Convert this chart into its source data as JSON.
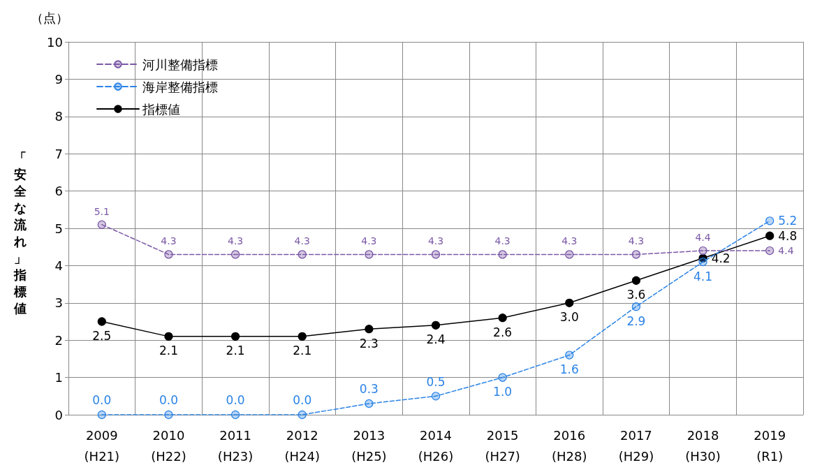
{
  "chart_data": {
    "type": "line",
    "ylabel": "「安全な流れ」指標値",
    "annotations": [
      "（点）"
    ],
    "categories": [
      "2009\n(H21)",
      "2010\n(H22)",
      "2011\n(H23)",
      "2012\n(H24)",
      "2013\n(H25)",
      "2014\n(H26)",
      "2015\n(H27)",
      "2016\n(H28)",
      "2017\n(H29)",
      "2018\n(H30)",
      "2019\n(R1)"
    ],
    "series": [
      {
        "name": "河川整備指標",
        "color": "#7b58a6",
        "line_style": "dashed",
        "values": [
          5.1,
          4.3,
          4.3,
          4.3,
          4.3,
          4.3,
          4.3,
          4.3,
          4.3,
          4.4,
          4.4
        ],
        "value_labels": [
          "5.1",
          "4.3",
          "4.3",
          "4.3",
          "4.3",
          "4.3",
          "4.3",
          "4.3",
          "4.3",
          "4.4",
          "4.4"
        ]
      },
      {
        "name": "海岸整備指標",
        "color": "#2a83e6",
        "line_style": "dashed",
        "values": [
          0,
          0,
          0,
          0,
          0.3,
          0.5,
          1.0,
          1.6,
          2.9,
          4.1,
          5.2
        ],
        "value_labels": [
          "0.0",
          "0.0",
          "0.0",
          "0.0",
          "0.3",
          "0.5",
          "1.0",
          "1.6",
          "2.9",
          "4.1",
          "5.2"
        ]
      },
      {
        "name": "指標値",
        "color": "#000000",
        "line_style": "solid",
        "values": [
          2.5,
          2.1,
          2.1,
          2.1,
          2.3,
          2.4,
          2.6,
          3.0,
          3.6,
          4.2,
          4.8
        ],
        "value_labels": [
          "2.5",
          "2.1",
          "2.1",
          "2.1",
          "2.3",
          "2.4",
          "2.6",
          "3.0",
          "3.6",
          "4.2",
          "4.8"
        ]
      }
    ],
    "ylim": [
      0,
      10
    ],
    "yticks": [
      0,
      1,
      2,
      3,
      4,
      5,
      6,
      7,
      8,
      9,
      10
    ],
    "grid": true,
    "legend": "top left",
    "marker": "circle"
  }
}
